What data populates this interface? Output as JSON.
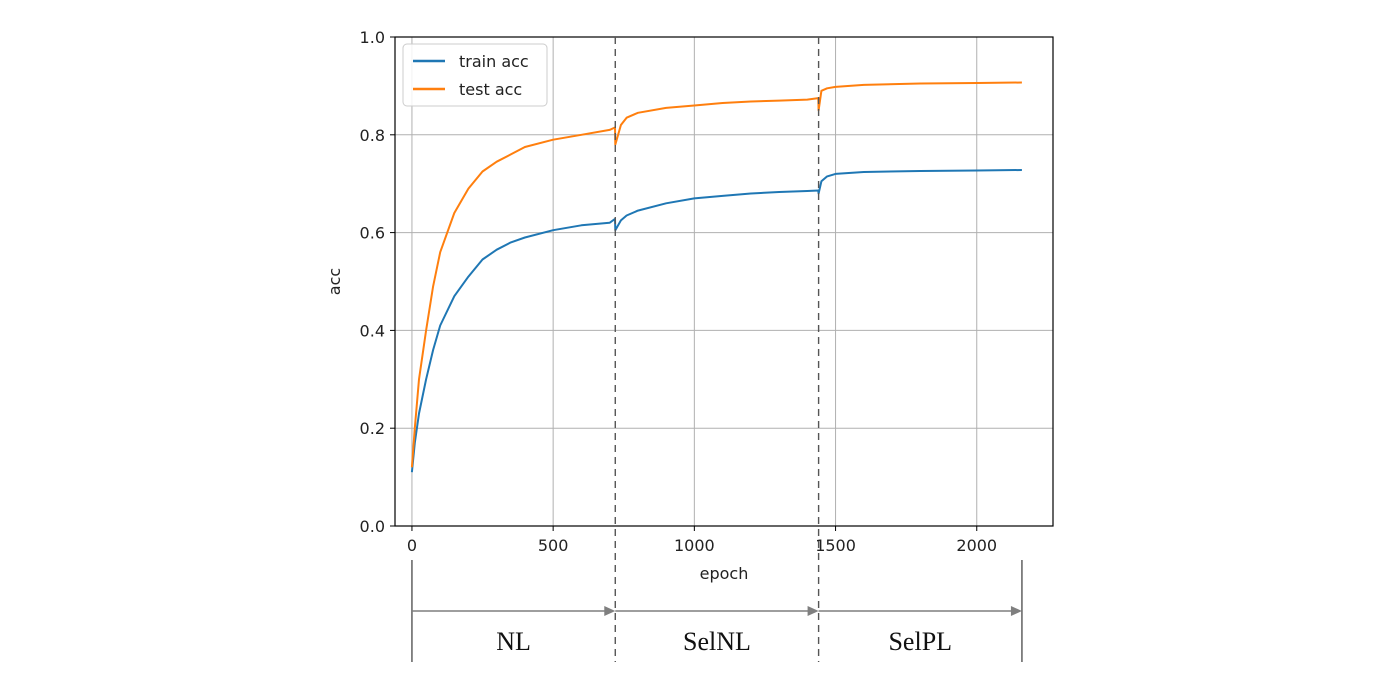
{
  "chart_data": {
    "type": "line",
    "xlabel": "epoch",
    "ylabel": "acc",
    "xlim": [
      -60,
      2270
    ],
    "ylim": [
      0.0,
      1.0
    ],
    "x_ticks": [
      0,
      500,
      1000,
      1500,
      2000
    ],
    "x_tick_labels": [
      "0",
      "500",
      "1000",
      "1500",
      "2000"
    ],
    "y_ticks": [
      0.0,
      0.2,
      0.4,
      0.6,
      0.8,
      1.0
    ],
    "y_tick_labels": [
      "0.0",
      "0.2",
      "0.4",
      "0.6",
      "0.8",
      "1.0"
    ],
    "grid": true,
    "legend_position": "top-left",
    "series": [
      {
        "name": "train acc",
        "color": "#1f77b4",
        "x": [
          0,
          10,
          25,
          50,
          75,
          100,
          150,
          200,
          250,
          300,
          350,
          400,
          500,
          600,
          700,
          719,
          720,
          740,
          760,
          800,
          900,
          1000,
          1100,
          1200,
          1300,
          1400,
          1439,
          1440,
          1450,
          1470,
          1500,
          1600,
          1800,
          2000,
          2160
        ],
        "values": [
          0.11,
          0.17,
          0.23,
          0.3,
          0.36,
          0.41,
          0.47,
          0.51,
          0.545,
          0.565,
          0.58,
          0.59,
          0.605,
          0.615,
          0.62,
          0.628,
          0.605,
          0.625,
          0.635,
          0.645,
          0.66,
          0.67,
          0.675,
          0.68,
          0.683,
          0.685,
          0.686,
          0.68,
          0.705,
          0.715,
          0.72,
          0.724,
          0.726,
          0.727,
          0.728
        ]
      },
      {
        "name": "test acc",
        "color": "#ff7f0e",
        "x": [
          0,
          10,
          25,
          50,
          75,
          100,
          150,
          200,
          250,
          300,
          350,
          400,
          500,
          600,
          700,
          719,
          720,
          740,
          760,
          800,
          900,
          1000,
          1100,
          1200,
          1300,
          1400,
          1439,
          1440,
          1450,
          1470,
          1500,
          1600,
          1800,
          2000,
          2160
        ],
        "values": [
          0.12,
          0.2,
          0.3,
          0.4,
          0.49,
          0.56,
          0.64,
          0.69,
          0.725,
          0.745,
          0.76,
          0.775,
          0.79,
          0.8,
          0.81,
          0.815,
          0.78,
          0.82,
          0.835,
          0.845,
          0.855,
          0.86,
          0.865,
          0.868,
          0.87,
          0.872,
          0.875,
          0.85,
          0.89,
          0.895,
          0.898,
          0.902,
          0.905,
          0.906,
          0.907
        ]
      }
    ],
    "phase_boundaries": [
      0,
      720,
      1440,
      2160
    ],
    "phases": [
      {
        "label": "NL",
        "start": 0,
        "end": 720
      },
      {
        "label": "SelNL",
        "start": 720,
        "end": 1440
      },
      {
        "label": "SelPL",
        "start": 1440,
        "end": 2160
      }
    ]
  },
  "colors": {
    "grid": "#b0b0b0",
    "axis": "#000000",
    "phase_line": "#555555",
    "phase_arrow": "#7f7f7f"
  }
}
